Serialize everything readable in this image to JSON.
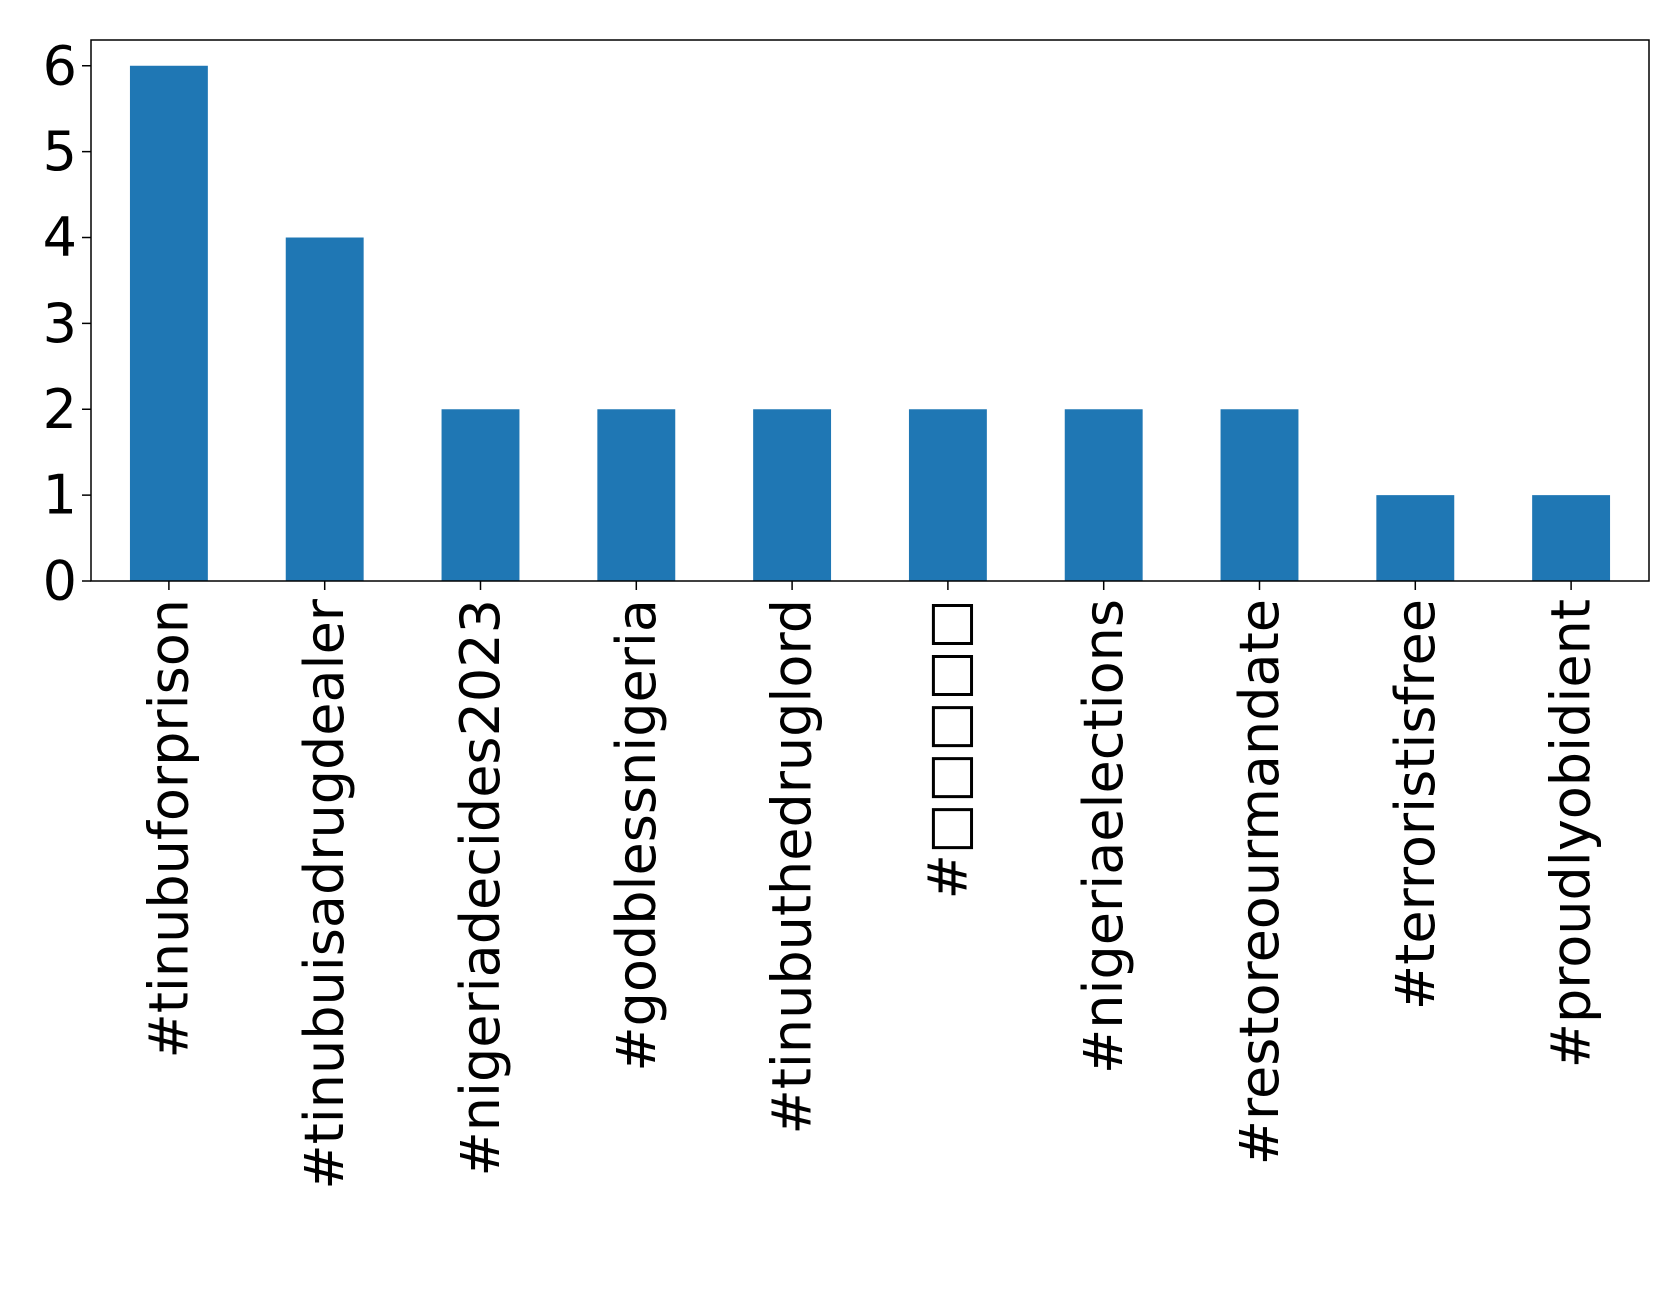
{
  "chart_data": {
    "type": "bar",
    "categories": [
      "#tinubuforprison",
      "#tinubuisadrugdealer",
      "#nigeriadecides2023",
      "#godblessnigeria",
      "#tinubuthedruglord",
      "#□□□□□",
      "#nigeriaelections",
      "#restoreourmandate",
      "#terroristisfree",
      "#proudlyobidient"
    ],
    "values": [
      6,
      4,
      2,
      2,
      2,
      2,
      2,
      2,
      1,
      1
    ],
    "color": "#1f77b4",
    "ylim": [
      0,
      6.3
    ],
    "yticks": [
      0,
      1,
      2,
      3,
      4,
      5,
      6
    ],
    "grid": false
  }
}
